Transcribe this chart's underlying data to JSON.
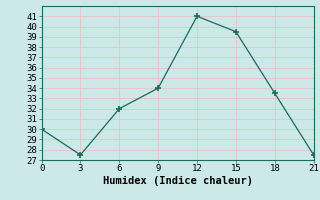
{
  "x": [
    0,
    3,
    6,
    9,
    12,
    15,
    18,
    21
  ],
  "y": [
    30,
    27.5,
    32,
    34,
    41,
    39.5,
    33.5,
    27.5
  ],
  "title": "",
  "xlabel": "Humidex (Indice chaleur)",
  "ylabel": "",
  "xlim": [
    0,
    21
  ],
  "ylim": [
    27,
    42
  ],
  "yticks": [
    27,
    28,
    29,
    30,
    31,
    32,
    33,
    34,
    35,
    36,
    37,
    38,
    39,
    40,
    41
  ],
  "xticks": [
    0,
    3,
    6,
    9,
    12,
    15,
    18,
    21
  ],
  "line_color": "#1a6b5a",
  "marker": "+",
  "bg_color": "#cce8e8",
  "grid_color": "#e8c8c8",
  "font_family": "monospace",
  "label_fontsize": 7.5,
  "tick_fontsize": 6.5
}
